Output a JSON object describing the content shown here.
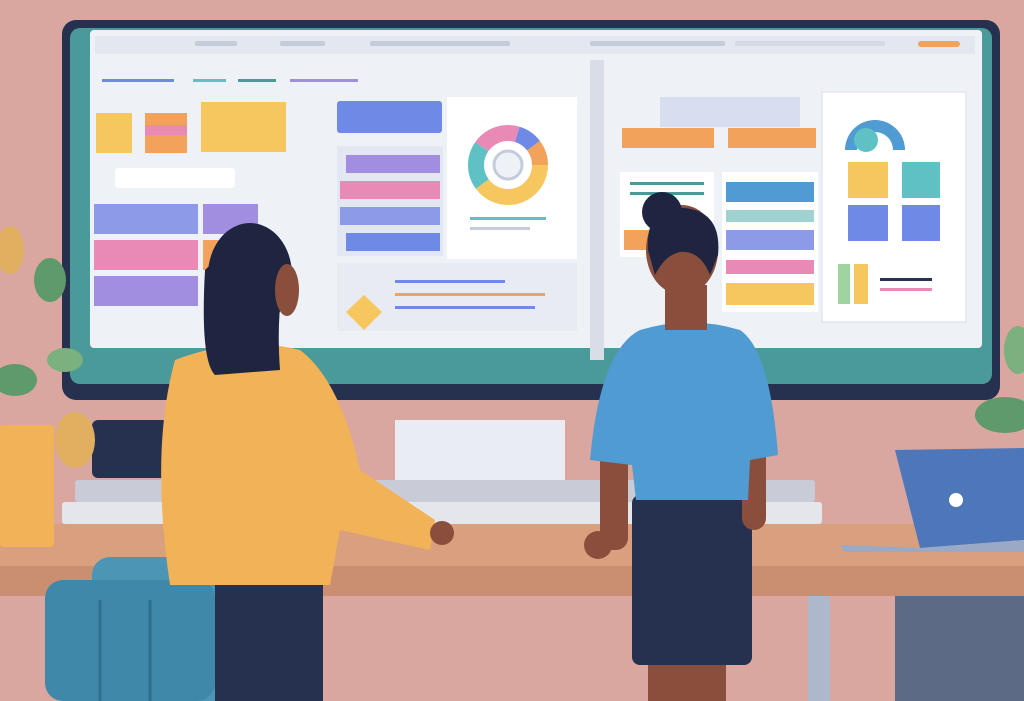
{
  "colors": {
    "wall": "#d9a6a0",
    "monitor_frame": "#26304f",
    "monitor_bezel_teal": "#4b9a9a",
    "screen": "#eef1f6",
    "desk": "#d8a07e",
    "desk_edge": "#b97d5f",
    "accent_orange": "#f2a25a",
    "accent_yellow": "#f7c75f",
    "accent_blue": "#6f8ae6",
    "accent_purple": "#a28ee0",
    "accent_pink": "#e889b6",
    "accent_teal": "#5ec2c4",
    "person_left_shirt": "#f2b257",
    "person_right_shirt": "#4f9bd2",
    "hair": "#1f2540",
    "skin": "#8a4f3c",
    "chair": "#4c95b5",
    "laptop": "#4d77b8",
    "plant": "#5f9a6a"
  }
}
